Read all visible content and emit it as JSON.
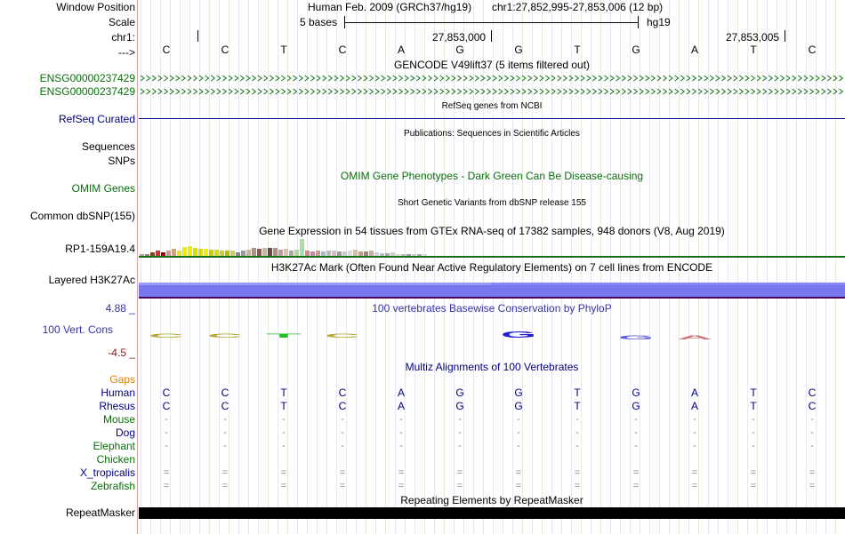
{
  "colors": {
    "green": "#0a6e0a",
    "navy": "#000080",
    "black": "#000000",
    "purple_title": "#3333aa",
    "maroon": "#8b1a1a",
    "orange": "#e08000",
    "h3k_band": "#7777ee",
    "h3k_dark": "#4b0a5a",
    "gene_arrow": "#137013"
  },
  "labels": {
    "window_position": "Window Position",
    "scale": "Scale",
    "chr": "chr1:",
    "arrow": "--->",
    "ensg1": "ENSG00000237429",
    "ensg2": "ENSG00000237429",
    "refseq": "RefSeq Curated",
    "sequences": "Sequences",
    "snps": "SNPs",
    "omim": "OMIM Genes",
    "dbsnp": "Common dbSNP(155)",
    "gtex": "RP1-159A19.4",
    "h3k27ac": "Layered H3K27Ac",
    "cons_max": "4.88 _",
    "cons": "100 Vert. Cons",
    "cons_min": "-4.5 _",
    "gaps": "Gaps",
    "species": [
      "Human",
      "Rhesus",
      "Mouse",
      "Dog",
      "Elephant",
      "Chicken",
      "X_tropicalis",
      "Zebrafish"
    ],
    "repeatmasker": "RepeatMasker"
  },
  "header": {
    "assembly": "Human Feb. 2009 (GRCh37/hg19)",
    "position": "chr1:27,852,995-27,853,006 (12 bp)",
    "scale_text": "5 bases",
    "scale_db": "hg19",
    "coord1": "27,853,000",
    "coord2": "27,853,005"
  },
  "bases": [
    "C",
    "C",
    "T",
    "C",
    "A",
    "G",
    "G",
    "T",
    "G",
    "A",
    "T",
    "C"
  ],
  "titles": {
    "gencode": "GENCODE V49lift37 (5 items filtered out)",
    "refseq": "RefSeq genes from NCBI",
    "publications": "Publications: Sequences in Scientific Articles",
    "omim": "OMIM Gene Phenotypes - Dark Green Can Be Disease-causing",
    "dbsnp": "Short Genetic Variants from dbSNP release 155",
    "gtex": "Gene Expression in 54 tissues from GTEx RNA-seq of 17382 samples, 948 donors (V8, Aug 2019)",
    "h3k27ac": "H3K27Ac Mark (Often Found Near Active Regulatory Elements) on 7 cell lines from ENCODE",
    "phylop": "100 vertebrates Basewise Conservation by PhyloP",
    "multiz": "Multiz Alignments of 100 Vertebrates",
    "repeat": "Repeating Elements by RepeatMasker"
  },
  "alignment": {
    "Human": [
      "C",
      "C",
      "T",
      "C",
      "A",
      "G",
      "G",
      "T",
      "G",
      "A",
      "T",
      "C"
    ],
    "Rhesus": [
      "C",
      "C",
      "T",
      "C",
      "A",
      "G",
      "G",
      "T",
      "G",
      "A",
      "T",
      "C"
    ],
    "Mouse": [
      "-",
      "-",
      "-",
      "-",
      "-",
      "-",
      "-",
      "-",
      "-",
      "-",
      "-",
      "-"
    ],
    "Dog": [
      "-",
      "-",
      "-",
      "-",
      "-",
      "-",
      "-",
      "-",
      "-",
      "-",
      "-",
      "-"
    ],
    "Elephant": [
      "-",
      "-",
      "-",
      "-",
      "-",
      "-",
      "-",
      "-",
      "-",
      "-",
      "-",
      "-"
    ],
    "Chicken": [
      "",
      "",
      "",
      "",
      "",
      "",
      "",
      "",
      "",
      "",
      "",
      ""
    ],
    "X_tropicalis": [
      "=",
      "=",
      "=",
      "=",
      "=",
      "=",
      "=",
      "=",
      "=",
      "=",
      "=",
      "="
    ],
    "Zebrafish": [
      "=",
      "=",
      "=",
      "=",
      "=",
      "=",
      "=",
      "=",
      "=",
      "=",
      "=",
      "="
    ]
  },
  "species_colors": {
    "Human": "#000080",
    "Rhesus": "#000080",
    "Mouse": "#0a6e0a",
    "Dog": "#000080",
    "Elephant": "#0a6e0a",
    "Chicken": "#0a6e0a",
    "X_tropicalis": "#000080",
    "Zebrafish": "#0a6e0a"
  },
  "phylop_letters": [
    {
      "base": "C",
      "color": "#b5a638",
      "score": 0.4
    },
    {
      "base": "C",
      "color": "#b5a638",
      "score": 0.4
    },
    {
      "base": "T",
      "color": "#1fc21f",
      "score": 0.6
    },
    {
      "base": "C",
      "color": "#b5a638",
      "score": 0.4
    },
    {
      "base": "A",
      "color": "",
      "score": 0
    },
    {
      "base": "G",
      "color": "",
      "score": 0
    },
    {
      "base": "G",
      "color": "#1f1fd6",
      "score": 1.0
    },
    {
      "base": "T",
      "color": "",
      "score": 0
    },
    {
      "base": "G",
      "color": "#5b5bd6",
      "score": -0.2
    },
    {
      "base": "A",
      "color": "#cc7070",
      "score": -0.2
    },
    {
      "base": "T",
      "color": "",
      "score": 0
    },
    {
      "base": "C",
      "color": "",
      "score": 0
    }
  ],
  "gtex_bars": [
    {
      "color": "#b8a090",
      "h": 0.1
    },
    {
      "color": "#a08070",
      "h": 0.1
    },
    {
      "color": "#8b4513",
      "h": 0.2
    },
    {
      "color": "#cc3333",
      "h": 0.3
    },
    {
      "color": "#990000",
      "h": 0.2
    },
    {
      "color": "#cc9999",
      "h": 0.3
    },
    {
      "color": "#d4a373",
      "h": 0.4
    },
    {
      "color": "#eedd22",
      "h": 0.3
    },
    {
      "color": "#eeee00",
      "h": 0.5
    },
    {
      "color": "#eeee00",
      "h": 0.55
    },
    {
      "color": "#dddd00",
      "h": 0.45
    },
    {
      "color": "#dddd00",
      "h": 0.4
    },
    {
      "color": "#eeee00",
      "h": 0.4
    },
    {
      "color": "#cccc00",
      "h": 0.35
    },
    {
      "color": "#dddd00",
      "h": 0.35
    },
    {
      "color": "#cccc33",
      "h": 0.3
    },
    {
      "color": "#bbbb00",
      "h": 0.3
    },
    {
      "color": "#cccc66",
      "h": 0.3
    },
    {
      "color": "#888888",
      "h": 0.2
    },
    {
      "color": "#999999",
      "h": 0.3
    },
    {
      "color": "#c9b59a",
      "h": 0.35
    },
    {
      "color": "#b09080",
      "h": 0.45
    },
    {
      "color": "#8b5a4a",
      "h": 0.4
    },
    {
      "color": "#c9b59a",
      "h": 0.45
    },
    {
      "color": "#6b4a3a",
      "h": 0.45
    },
    {
      "color": "#b09080",
      "h": 0.45
    },
    {
      "color": "#cc9999",
      "h": 0.35
    },
    {
      "color": "#dcc0b0",
      "h": 0.4
    },
    {
      "color": "#aaaaaa",
      "h": 0.3
    },
    {
      "color": "#aadd99",
      "h": 0.35
    },
    {
      "color": "#aaddaa",
      "h": 0.95
    },
    {
      "color": "#dd8888",
      "h": 0.3
    },
    {
      "color": "#cc88aa",
      "h": 0.25
    },
    {
      "color": "#cc9999",
      "h": 0.3
    },
    {
      "color": "#aabbcc",
      "h": 0.25
    },
    {
      "color": "#bbbbbb",
      "h": 0.3
    },
    {
      "color": "#ddbbbb",
      "h": 0.3
    },
    {
      "color": "#999999",
      "h": 0.25
    },
    {
      "color": "#cccccc",
      "h": 0.25
    },
    {
      "color": "#dddddd",
      "h": 0.3
    },
    {
      "color": "#d4c0a0",
      "h": 0.35
    },
    {
      "color": "#cc9988",
      "h": 0.25
    },
    {
      "color": "#998877",
      "h": 0.25
    },
    {
      "color": "#ccaaaa",
      "h": 0.3
    },
    {
      "color": "#d0d0d0",
      "h": 0.2
    },
    {
      "color": "#bbbbbb",
      "h": 0.15
    },
    {
      "color": "#aaaaaa",
      "h": 0.15
    },
    {
      "color": "#cccccc",
      "h": 0.2
    },
    {
      "color": "#ddddaa",
      "h": 0.1
    },
    {
      "color": "#bbbbbb",
      "h": 0.1
    },
    {
      "color": "#999999",
      "h": 0.1
    },
    {
      "color": "#cccccc",
      "h": 0.1
    },
    {
      "color": "#aaaaaa",
      "h": 0.1
    },
    {
      "color": "#dddddd",
      "h": 0.1
    }
  ]
}
